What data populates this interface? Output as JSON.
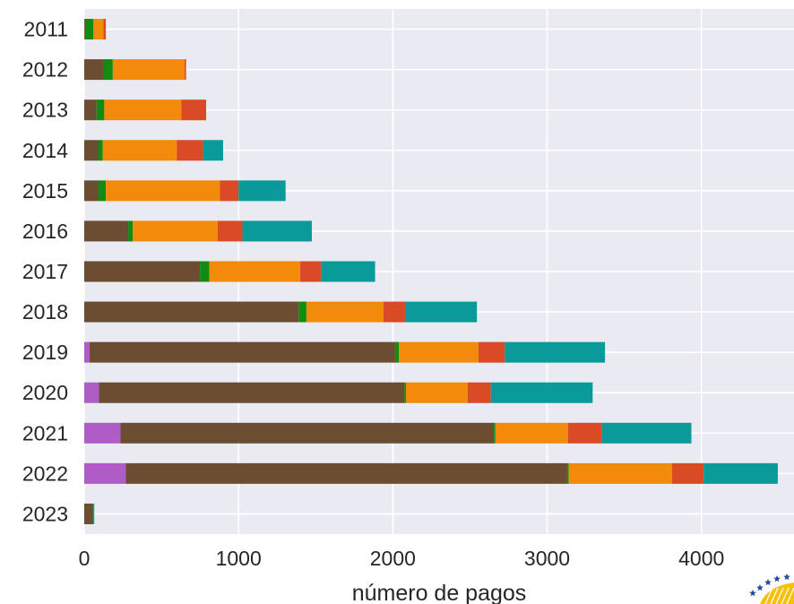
{
  "chart_data": {
    "type": "bar",
    "orientation": "horizontal",
    "stacked": true,
    "xlabel": "número de pagos",
    "ylabel": "",
    "xlim": [
      0,
      4600
    ],
    "xticks": [
      0,
      1000,
      2000,
      3000,
      4000
    ],
    "grid": true,
    "background": "#eaeaf2",
    "categories": [
      "2011",
      "2012",
      "2013",
      "2014",
      "2015",
      "2016",
      "2017",
      "2018",
      "2019",
      "2020",
      "2021",
      "2022",
      "2023"
    ],
    "series": [
      {
        "color": "#b05cc6",
        "values": [
          0,
          0,
          0,
          0,
          0,
          0,
          0,
          0,
          35,
          95,
          235,
          270,
          0
        ]
      },
      {
        "color": "#6b4e32",
        "values": [
          5,
          125,
          80,
          90,
          90,
          285,
          750,
          1390,
          1980,
          1980,
          2420,
          2860,
          55
        ]
      },
      {
        "color": "#138a13",
        "values": [
          55,
          60,
          50,
          30,
          50,
          30,
          60,
          50,
          25,
          10,
          10,
          10,
          5
        ]
      },
      {
        "color": "#f28a0c",
        "values": [
          65,
          465,
          500,
          480,
          740,
          550,
          590,
          500,
          515,
          400,
          470,
          670,
          0
        ]
      },
      {
        "color": "#d94a25",
        "values": [
          15,
          10,
          160,
          170,
          120,
          160,
          135,
          145,
          170,
          150,
          220,
          205,
          0
        ]
      },
      {
        "color": "#0a9a9a",
        "values": [
          0,
          0,
          0,
          130,
          305,
          450,
          350,
          460,
          650,
          660,
          580,
          480,
          5
        ]
      }
    ]
  },
  "logo": {
    "icon": "eu-stars-wheat-logo"
  }
}
